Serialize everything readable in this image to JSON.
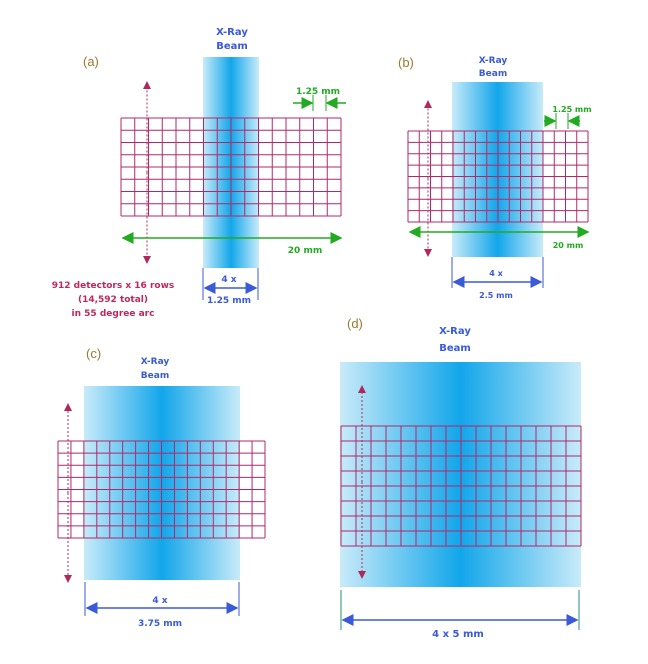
{
  "colors": {
    "grid": "#b0286a",
    "beam_edge": "#c8ebf9",
    "beam_center": "#12a6ea",
    "dimension_blue": "#3a5ad8",
    "dimension_green": "#22aa22",
    "arrow_pink": "#b0285a"
  },
  "panels": {
    "a": {
      "label": "(a)",
      "beam_title_1": "X-Ray",
      "beam_title_2": "Beam",
      "cell_width": "1.25 mm",
      "total_width": "20 mm",
      "beam_width_1": "4 x",
      "beam_width_2": "1.25 mm",
      "detector_note_1": "912 detectors x 16 rows",
      "detector_note_2": "(14,592 total)",
      "detector_note_3": "in 55 degree arc"
    },
    "b": {
      "label": "(b)",
      "beam_title_1": "X-Ray",
      "beam_title_2": "Beam",
      "cell_width": "1.25 mm",
      "total_width": "20 mm",
      "beam_width_1": "4 x",
      "beam_width_2": "2.5 mm"
    },
    "c": {
      "label": "(c)",
      "beam_title_1": "X-Ray",
      "beam_title_2": "Beam",
      "beam_width_1": "4 x",
      "beam_width_2": "3.75 mm"
    },
    "d": {
      "label": "(d)",
      "beam_title_1": "X-Ray",
      "beam_title_2": "Beam",
      "beam_width": "4 x 5 mm"
    }
  }
}
